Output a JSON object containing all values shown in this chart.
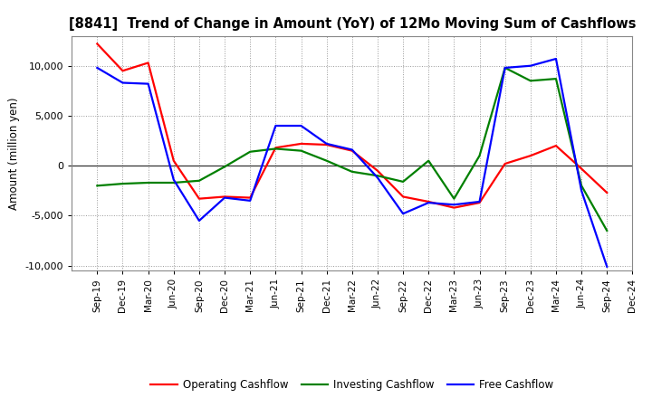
{
  "title": "[8841]  Trend of Change in Amount (YoY) of 12Mo Moving Sum of Cashflows",
  "ylabel": "Amount (million yen)",
  "xlabels": [
    "Sep-19",
    "Dec-19",
    "Mar-20",
    "Jun-20",
    "Sep-20",
    "Dec-20",
    "Mar-21",
    "Jun-21",
    "Sep-21",
    "Dec-21",
    "Mar-22",
    "Jun-22",
    "Sep-22",
    "Dec-22",
    "Mar-23",
    "Jun-23",
    "Sep-23",
    "Dec-23",
    "Mar-24",
    "Jun-24",
    "Sep-24",
    "Dec-24"
  ],
  "operating": [
    12200,
    9500,
    10300,
    500,
    -3300,
    -3100,
    -3200,
    1800,
    2200,
    2100,
    1500,
    -500,
    -3100,
    -3600,
    -4200,
    -3700,
    200,
    1000,
    2000,
    -300,
    -2700,
    null
  ],
  "investing": [
    -2000,
    -1800,
    -1700,
    -1700,
    -1500,
    -100,
    1400,
    1700,
    1500,
    500,
    -600,
    -1000,
    -1600,
    500,
    -3300,
    1000,
    9800,
    8500,
    8700,
    -2000,
    -6500,
    null
  ],
  "free": [
    9800,
    8300,
    8200,
    -1400,
    -5500,
    -3200,
    -3500,
    4000,
    4000,
    2200,
    1600,
    -1200,
    -4800,
    -3700,
    -3900,
    -3600,
    9800,
    10000,
    10700,
    -2500,
    -10100,
    null
  ],
  "colors": {
    "operating": "#ff0000",
    "investing": "#008000",
    "free": "#0000ff"
  },
  "ylim": [
    -10500,
    13000
  ],
  "yticks": [
    -10000,
    -5000,
    0,
    5000,
    10000
  ],
  "legend_labels": [
    "Operating Cashflow",
    "Investing Cashflow",
    "Free Cashflow"
  ],
  "background": "#ffffff",
  "grid_color": "#999999"
}
